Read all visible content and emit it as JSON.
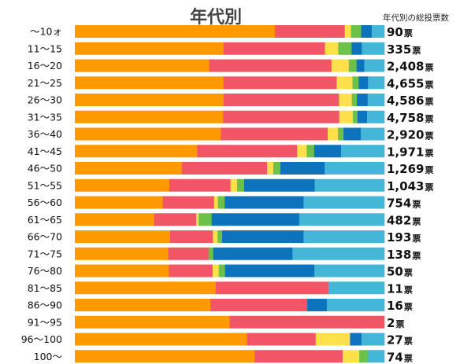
{
  "chart_data": {
    "type": "bar",
    "stacked": "100%",
    "orientation": "horizontal",
    "title": "年代別",
    "count_header": "年代別の総投票数",
    "colors": [
      "#ff9900",
      "#f25566",
      "#fde04a",
      "#6cc148",
      "#0d73bd",
      "#44b6d8"
    ],
    "categories": [
      "～10ォ",
      "11～15",
      "16～20",
      "21～25",
      "26～30",
      "31～35",
      "36～40",
      "41～45",
      "46～50",
      "51～55",
      "56～60",
      "61～65",
      "66～70",
      "71～75",
      "76～80",
      "81～85",
      "86～90",
      "91～95",
      "96～100",
      "100～"
    ],
    "totals": [
      {
        "value": "90",
        "unit": "票"
      },
      {
        "value": "335",
        "unit": "票"
      },
      {
        "value": "2,408",
        "unit": "票"
      },
      {
        "value": "4,655",
        "unit": "票"
      },
      {
        "value": "4,586",
        "unit": "票"
      },
      {
        "value": "4,758",
        "unit": "票"
      },
      {
        "value": "2,920",
        "unit": "票"
      },
      {
        "value": "1,971",
        "unit": "票"
      },
      {
        "value": "1,269",
        "unit": "票"
      },
      {
        "value": "1,043",
        "unit": "票"
      },
      {
        "value": "754",
        "unit": "票"
      },
      {
        "value": "482",
        "unit": "票"
      },
      {
        "value": "193",
        "unit": "票"
      },
      {
        "value": "138",
        "unit": "票"
      },
      {
        "value": "50",
        "unit": "票"
      },
      {
        "value": "11",
        "unit": "票"
      },
      {
        "value": "16",
        "unit": "票"
      },
      {
        "value": "2",
        "unit": "票"
      },
      {
        "value": "27",
        "unit": "票"
      },
      {
        "value": "74",
        "unit": "票"
      }
    ],
    "segments_percent": [
      [
        64.6,
        22.6,
        2.0,
        3.3,
        3.4,
        4.1
      ],
      [
        48.0,
        32.8,
        4.3,
        4.3,
        3.3,
        7.3
      ],
      [
        43.4,
        39.5,
        5.6,
        2.5,
        2.5,
        6.5
      ],
      [
        48.0,
        36.6,
        5.1,
        2.0,
        3.0,
        5.3
      ],
      [
        48.1,
        37.2,
        4.2,
        1.6,
        3.5,
        5.4
      ],
      [
        47.9,
        37.5,
        4.4,
        1.5,
        3.1,
        5.6
      ],
      [
        47.2,
        34.5,
        3.3,
        1.8,
        5.6,
        7.6
      ],
      [
        39.5,
        32.3,
        3.1,
        2.4,
        8.7,
        14.0
      ],
      [
        34.5,
        27.6,
        2.0,
        2.3,
        14.3,
        19.3
      ],
      [
        30.5,
        19.8,
        2.1,
        2.3,
        22.8,
        22.5
      ],
      [
        28.4,
        16.6,
        1.2,
        2.2,
        25.5,
        26.1
      ],
      [
        25.6,
        13.6,
        0.8,
        4.2,
        28.3,
        27.5
      ],
      [
        30.8,
        13.8,
        1.5,
        1.5,
        26.3,
        26.1
      ],
      [
        30.2,
        13.0,
        0.0,
        1.5,
        25.6,
        29.7
      ],
      [
        30.4,
        14.1,
        2.0,
        2.0,
        28.9,
        22.6
      ],
      [
        45.5,
        36.4,
        0.0,
        0.0,
        0.0,
        18.1
      ],
      [
        43.8,
        31.3,
        0.0,
        0.0,
        6.3,
        18.6
      ],
      [
        50.0,
        50.0,
        0.0,
        0.0,
        0.0,
        0.0
      ],
      [
        55.6,
        22.2,
        11.1,
        0.0,
        3.7,
        7.4
      ],
      [
        58.1,
        28.4,
        5.4,
        2.7,
        0.0,
        5.4
      ]
    ]
  }
}
